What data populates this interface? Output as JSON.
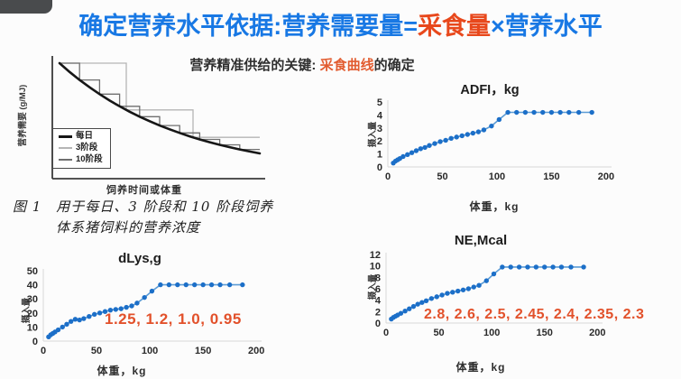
{
  "page": {
    "title_parts": [
      {
        "text": "确定营养水平依据:营养需要量=",
        "color": "#1878e4"
      },
      {
        "text": "采食量",
        "color": "#e8481c"
      },
      {
        "text": "×营养水平",
        "color": "#1878e4"
      }
    ],
    "subtitle_parts": [
      {
        "text": "营养精准供给的关键: ",
        "color": "#2f2f2f"
      },
      {
        "text": "采食曲线",
        "color": "#e25c30"
      },
      {
        "text": "的确定",
        "color": "#2f2f2f"
      }
    ]
  },
  "figure1": {
    "caption_line1": "图 1　用于每日、3 阶段和 10 阶段饲养",
    "caption_line2": "体系猪饲料的营养浓度"
  },
  "chart_data": [
    {
      "id": "fig1",
      "type": "line",
      "title": "",
      "x_label": "饲养时间或体重",
      "y_label": "营养需要 (g/MJ)",
      "axes_numeric": false,
      "legend_position": "inside-left",
      "series": [
        {
          "name": "每日",
          "style": "curve",
          "color": "#161616",
          "width": 2.6,
          "t": [
            0,
            0.05,
            0.1,
            0.15,
            0.2,
            0.25,
            0.3,
            0.35,
            0.4,
            0.45,
            0.5,
            0.55,
            0.6,
            0.65,
            0.7,
            0.75,
            0.8,
            0.85,
            0.9,
            0.95,
            1.0
          ],
          "v": [
            1.0,
            0.903,
            0.814,
            0.733,
            0.657,
            0.586,
            0.522,
            0.462,
            0.407,
            0.357,
            0.309,
            0.267,
            0.227,
            0.189,
            0.155,
            0.124,
            0.095,
            0.069,
            0.044,
            0.021,
            0.0
          ]
        },
        {
          "name": "3阶段",
          "style": "step",
          "stages": 3,
          "color": "#b5b5b5",
          "width": 1.3
        },
        {
          "name": "10阶段",
          "style": "step",
          "stages": 10,
          "color": "#6f6f6f",
          "width": 1.3
        }
      ]
    },
    {
      "id": "adfi",
      "type": "scatter",
      "title": "ADFI，kg",
      "x_label": "体重，kg",
      "y_label": "摄入量",
      "x": [
        5,
        7,
        9,
        11,
        14,
        18,
        22,
        26,
        30,
        34,
        38,
        43,
        48,
        53,
        58,
        63,
        68,
        73,
        78,
        83,
        88,
        95,
        102,
        110,
        118,
        126,
        134,
        142,
        150,
        158,
        166,
        175,
        187
      ],
      "y": [
        0.3,
        0.45,
        0.55,
        0.65,
        0.8,
        0.95,
        1.1,
        1.25,
        1.4,
        1.5,
        1.65,
        1.8,
        1.95,
        2.05,
        2.2,
        2.3,
        2.4,
        2.5,
        2.6,
        2.7,
        2.85,
        3.15,
        3.65,
        4.2,
        4.2,
        4.2,
        4.2,
        4.2,
        4.2,
        4.2,
        4.2,
        4.2,
        4.2
      ],
      "xlim": [
        0,
        210
      ],
      "ylim": [
        0,
        5
      ],
      "xticks": [
        0,
        50,
        100,
        150,
        200
      ],
      "yticks": [
        0,
        1,
        2,
        3,
        4,
        5
      ],
      "grid": false,
      "marker_color": "#1c6fc8",
      "line_color": "#5b9bd5"
    },
    {
      "id": "dlys",
      "type": "scatter",
      "title": "dLys,g",
      "x_label": "体重，kg",
      "y_label": "摄入量",
      "x": [
        5,
        7,
        9,
        11,
        14,
        18,
        22,
        26,
        30,
        34,
        38,
        43,
        48,
        53,
        58,
        63,
        68,
        73,
        78,
        83,
        88,
        95,
        102,
        110,
        118,
        126,
        134,
        142,
        150,
        158,
        166,
        175,
        187
      ],
      "y": [
        3,
        4.5,
        5.5,
        6.5,
        8,
        10,
        12,
        14,
        15.5,
        15,
        16,
        17.5,
        19,
        20,
        21,
        22,
        22.5,
        23,
        24,
        25,
        27,
        31,
        35.5,
        40,
        40,
        40,
        40,
        40,
        40,
        40,
        40,
        40,
        40
      ],
      "xlim": [
        0,
        210
      ],
      "ylim": [
        0,
        50
      ],
      "xticks": [
        0,
        50,
        100,
        150,
        200
      ],
      "yticks": [
        0,
        10,
        20,
        30,
        40,
        50
      ],
      "grid": false,
      "marker_color": "#1c6fc8",
      "line_color": "#5b9bd5",
      "annotation": "1.25,  1.2,  1.0,  0.95",
      "annotation_color": "#e2512b"
    },
    {
      "id": "ne",
      "type": "scatter",
      "title": "NE,Mcal",
      "x_label": "体重，kg",
      "y_label": "摄入量",
      "x": [
        5,
        7,
        9,
        11,
        14,
        18,
        22,
        26,
        30,
        34,
        38,
        43,
        48,
        53,
        58,
        63,
        68,
        73,
        78,
        83,
        88,
        95,
        102,
        110,
        118,
        126,
        134,
        142,
        150,
        158,
        166,
        175,
        187
      ],
      "y": [
        0.7,
        1.0,
        1.2,
        1.4,
        1.7,
        2.1,
        2.5,
        2.9,
        3.3,
        3.6,
        3.9,
        4.3,
        4.6,
        4.9,
        5.2,
        5.4,
        5.6,
        5.8,
        6.0,
        6.3,
        6.6,
        7.4,
        8.6,
        9.8,
        9.8,
        9.8,
        9.8,
        9.8,
        9.8,
        9.8,
        9.8,
        9.8,
        9.8
      ],
      "xlim": [
        0,
        210
      ],
      "ylim": [
        0,
        12
      ],
      "xticks": [
        0,
        50,
        100,
        150,
        200
      ],
      "yticks": [
        0,
        2,
        4,
        6,
        8,
        10,
        12
      ],
      "grid": false,
      "marker_color": "#1c6fc8",
      "line_color": "#5b9bd5",
      "annotation": "2.8,  2.6,  2.5,  2.45,  2.4,  2.35,  2.3",
      "annotation_color": "#e2512b"
    }
  ]
}
